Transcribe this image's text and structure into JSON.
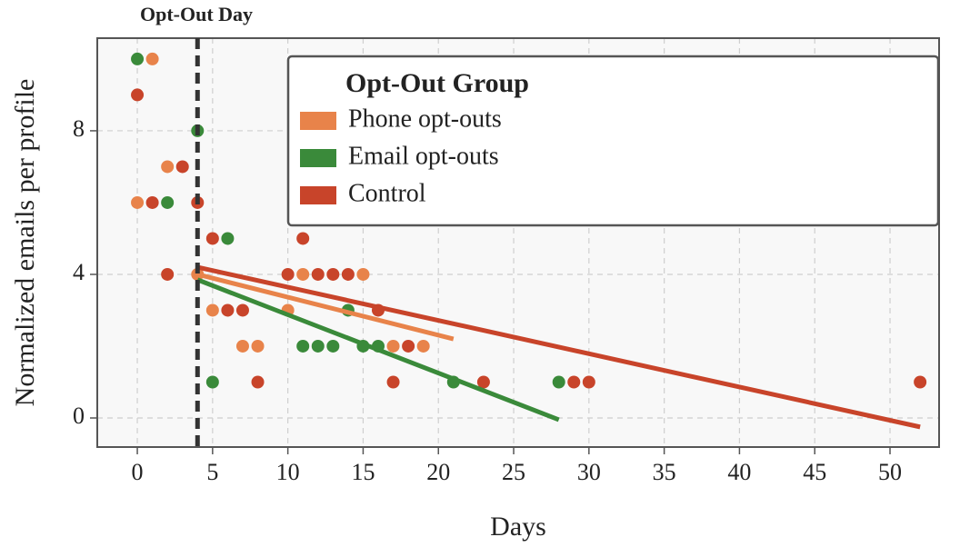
{
  "chart_data": {
    "type": "scatter",
    "annotation": "Opt-Out Day",
    "vline": 4,
    "xlabel": "Days",
    "ylabel": "Normalized emails per profile",
    "legend_title": "Opt-Out Group",
    "legend": "upper right",
    "grid": true,
    "xlim": [
      -2.66,
      53.26
    ],
    "ylim": [
      -0.81,
      10.58
    ],
    "xticks": [
      0,
      5,
      10,
      15,
      20,
      25,
      30,
      35,
      40,
      45,
      50
    ],
    "yticks": [
      0,
      4,
      8
    ],
    "series": [
      {
        "name": "Phone opt-outs",
        "color": "#e8834a",
        "x": [
          1,
          0,
          2,
          4,
          5,
          7,
          8,
          10,
          11,
          15,
          17,
          19
        ],
        "values": [
          10,
          6,
          7,
          4,
          3,
          2,
          2,
          3,
          4,
          4,
          2,
          2
        ],
        "trend_x": [
          4,
          21
        ],
        "trend_values": [
          4,
          2.2
        ]
      },
      {
        "name": "Email opt-outs",
        "color": "#3a8a3a",
        "x": [
          0,
          2,
          4,
          6,
          5,
          11,
          12,
          13,
          14,
          15,
          16,
          21,
          28
        ],
        "values": [
          10,
          6,
          8,
          5,
          1,
          2,
          2,
          2,
          3,
          2,
          2,
          1,
          1
        ],
        "trend_x": [
          4,
          28
        ],
        "trend_values": [
          3.85,
          -0.05
        ]
      },
      {
        "name": "Control",
        "color": "#c8442a",
        "x": [
          0,
          1,
          2,
          3,
          4,
          5,
          6,
          7,
          8,
          10,
          11,
          12,
          13,
          14,
          16,
          17,
          18,
          23,
          29,
          30,
          52
        ],
        "values": [
          9,
          6,
          4,
          7,
          6,
          5,
          3,
          3,
          1,
          4,
          5,
          4,
          4,
          4,
          3,
          1,
          2,
          1,
          1,
          1,
          1
        ],
        "trend_x": [
          4,
          52
        ],
        "trend_values": [
          4.2,
          -0.25
        ]
      }
    ]
  }
}
